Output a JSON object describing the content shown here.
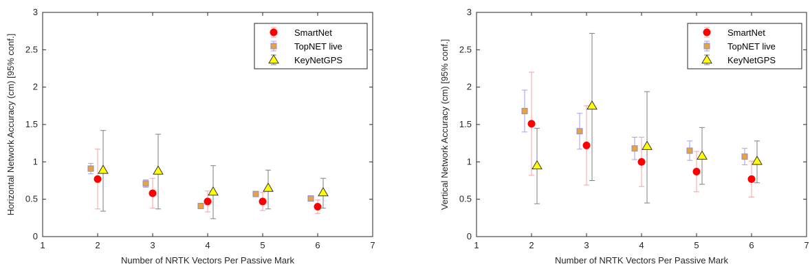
{
  "chart_data": [
    {
      "type": "scatter",
      "xlabel": "Number of NRTK Vectors Per Passive Mark",
      "ylabel": "Horizontal Network Accuracy (cm) [95% conf.]",
      "xlim": [
        1,
        7
      ],
      "ylim": [
        0,
        3
      ],
      "xticks": [
        "1",
        "2",
        "3",
        "4",
        "5",
        "6",
        "7"
      ],
      "yticks": [
        "0",
        "0.5",
        "1",
        "1.5",
        "2",
        "2.5",
        "3"
      ],
      "grid": false,
      "legend": "top-right",
      "series": [
        {
          "name": "SmartNet",
          "marker": "circle",
          "color": "#ff0000",
          "errcolor": "#f4a0a0",
          "points": [
            {
              "x": 2,
              "y": 0.77,
              "lo": 0.37,
              "hi": 1.17
            },
            {
              "x": 3,
              "y": 0.58,
              "lo": 0.38,
              "hi": 0.78
            },
            {
              "x": 4,
              "y": 0.47,
              "lo": 0.33,
              "hi": 0.61
            },
            {
              "x": 5,
              "y": 0.47,
              "lo": 0.35,
              "hi": 0.59
            },
            {
              "x": 6,
              "y": 0.4,
              "lo": 0.31,
              "hi": 0.49
            }
          ]
        },
        {
          "name": "TopNET live",
          "marker": "square",
          "color": "#e8a33d",
          "errcolor": "#9d9df5",
          "points": [
            {
              "x": 2,
              "y": 0.91,
              "lo": 0.84,
              "hi": 0.98
            },
            {
              "x": 3,
              "y": 0.71,
              "lo": 0.66,
              "hi": 0.76
            },
            {
              "x": 4,
              "y": 0.41,
              "lo": 0.38,
              "hi": 0.44
            },
            {
              "x": 5,
              "y": 0.57,
              "lo": 0.54,
              "hi": 0.6
            },
            {
              "x": 6,
              "y": 0.51,
              "lo": 0.48,
              "hi": 0.54
            }
          ]
        },
        {
          "name": "KeyNetGPS",
          "marker": "triangle",
          "color": "#ffff00",
          "errcolor": "#7f7f7f",
          "points": [
            {
              "x": 2,
              "y": 0.89,
              "lo": 0.34,
              "hi": 1.42
            },
            {
              "x": 3,
              "y": 0.88,
              "lo": 0.37,
              "hi": 1.37
            },
            {
              "x": 4,
              "y": 0.6,
              "lo": 0.24,
              "hi": 0.95
            },
            {
              "x": 5,
              "y": 0.65,
              "lo": 0.37,
              "hi": 0.89
            },
            {
              "x": 6,
              "y": 0.59,
              "lo": 0.38,
              "hi": 0.78
            }
          ]
        }
      ]
    },
    {
      "type": "scatter",
      "xlabel": "Number of NRTK Vectors Per Passive Mark",
      "ylabel": "Vertical Network Accuracy (cm) [95% conf.]",
      "xlim": [
        1,
        7
      ],
      "ylim": [
        0,
        3
      ],
      "xticks": [
        "1",
        "2",
        "3",
        "4",
        "5",
        "6",
        "7"
      ],
      "yticks": [
        "0",
        "0.5",
        "1",
        "1.5",
        "2",
        "2.5",
        "3"
      ],
      "grid": false,
      "legend": "top-right",
      "series": [
        {
          "name": "SmartNet",
          "marker": "circle",
          "color": "#ff0000",
          "errcolor": "#f4a0a0",
          "points": [
            {
              "x": 2,
              "y": 1.51,
              "lo": 0.82,
              "hi": 2.2
            },
            {
              "x": 3,
              "y": 1.22,
              "lo": 0.69,
              "hi": 1.75
            },
            {
              "x": 4,
              "y": 1.0,
              "lo": 0.67,
              "hi": 1.33
            },
            {
              "x": 5,
              "y": 0.87,
              "lo": 0.6,
              "hi": 1.14
            },
            {
              "x": 6,
              "y": 0.77,
              "lo": 0.53,
              "hi": 1.01
            }
          ]
        },
        {
          "name": "TopNET live",
          "marker": "square",
          "color": "#e8a33d",
          "errcolor": "#9d9df5",
          "points": [
            {
              "x": 2,
              "y": 1.68,
              "lo": 1.4,
              "hi": 1.96
            },
            {
              "x": 3,
              "y": 1.41,
              "lo": 1.17,
              "hi": 1.65
            },
            {
              "x": 4,
              "y": 1.18,
              "lo": 1.03,
              "hi": 1.33
            },
            {
              "x": 5,
              "y": 1.15,
              "lo": 1.02,
              "hi": 1.28
            },
            {
              "x": 6,
              "y": 1.07,
              "lo": 0.96,
              "hi": 1.18
            }
          ]
        },
        {
          "name": "KeyNetGPS",
          "marker": "triangle",
          "color": "#ffff00",
          "errcolor": "#7f7f7f",
          "points": [
            {
              "x": 2,
              "y": 0.95,
              "lo": 0.44,
              "hi": 1.45
            },
            {
              "x": 3,
              "y": 1.75,
              "lo": 0.75,
              "hi": 2.72
            },
            {
              "x": 4,
              "y": 1.21,
              "lo": 0.45,
              "hi": 1.94
            },
            {
              "x": 5,
              "y": 1.08,
              "lo": 0.7,
              "hi": 1.46
            },
            {
              "x": 6,
              "y": 1.01,
              "lo": 0.72,
              "hi": 1.28
            }
          ]
        }
      ]
    }
  ]
}
